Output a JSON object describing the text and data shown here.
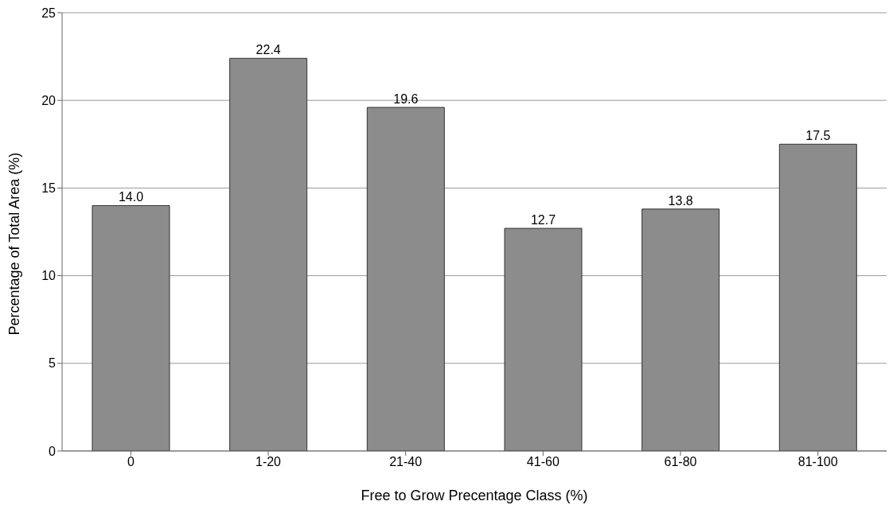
{
  "chart_data": {
    "type": "bar",
    "xlabel": "Free to Grow Precentage Class (%)",
    "ylabel": "Percentage of Total Area (%)",
    "categories": [
      "0",
      "1-20",
      "21-40",
      "41-60",
      "61-80",
      "81-100"
    ],
    "values": [
      14.0,
      22.4,
      19.6,
      12.7,
      13.8,
      17.5
    ],
    "value_labels": [
      "14.0",
      "22.4",
      "19.6",
      "12.7",
      "13.8",
      "17.5"
    ],
    "color": "#8c8c8c",
    "ylim": [
      0,
      25
    ],
    "yticks": [
      0,
      5,
      10,
      15,
      20,
      25
    ],
    "grid": "y"
  }
}
